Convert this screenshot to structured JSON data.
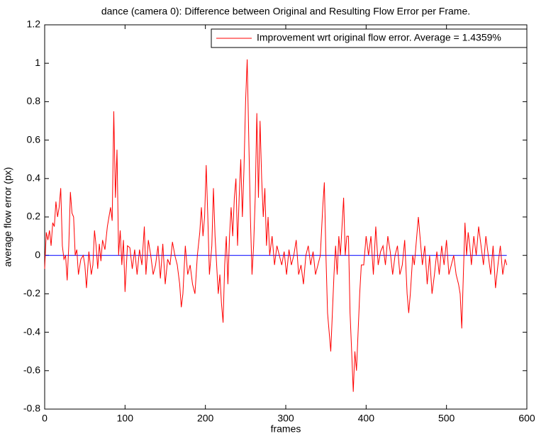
{
  "chart_data": {
    "type": "line",
    "title": "dance (camera 0): Difference between Original and Resulting Flow Error per Frame.",
    "xlabel": "frames",
    "ylabel": "average flow error (px)",
    "xlim": [
      0,
      600
    ],
    "xticks": [
      0,
      100,
      200,
      300,
      400,
      500,
      600
    ],
    "ylim": [
      -0.8,
      1.2
    ],
    "yticks": [
      -0.8,
      -0.6,
      -0.4,
      -0.2,
      0,
      0.2,
      0.4,
      0.6,
      0.8,
      1,
      1.2
    ],
    "grid": false,
    "legend": "upper right",
    "series": [
      {
        "name": "Improvement wrt original flow error. Average = 1.4359%",
        "color": "#ff0000",
        "x": [
          0,
          2,
          4,
          6,
          8,
          10,
          12,
          14,
          16,
          18,
          20,
          22,
          24,
          26,
          28,
          30,
          32,
          34,
          36,
          38,
          40,
          42,
          45,
          48,
          50,
          52,
          55,
          58,
          60,
          62,
          64,
          66,
          68,
          70,
          72,
          75,
          78,
          80,
          82,
          84,
          86,
          88,
          90,
          92,
          94,
          96,
          98,
          100,
          103,
          106,
          109,
          112,
          115,
          118,
          121,
          124,
          126,
          129,
          132,
          135,
          138,
          141,
          144,
          147,
          150,
          153,
          156,
          159,
          162,
          165,
          168,
          170,
          172,
          175,
          178,
          181,
          184,
          187,
          190,
          193,
          195,
          197,
          199,
          201,
          203,
          205,
          208,
          210,
          212,
          214,
          216,
          218,
          220,
          222,
          224,
          226,
          228,
          230,
          232,
          234,
          236,
          238,
          240,
          242,
          244,
          246,
          248,
          250,
          252,
          254,
          256,
          258,
          260,
          262,
          264,
          266,
          268,
          270,
          272,
          274,
          276,
          278,
          280,
          283,
          286,
          289,
          292,
          295,
          298,
          301,
          304,
          307,
          310,
          313,
          316,
          319,
          322,
          325,
          328,
          331,
          334,
          337,
          340,
          343,
          346,
          348,
          350,
          352,
          354,
          356,
          358,
          360,
          362,
          364,
          366,
          368,
          370,
          372,
          374,
          376,
          378,
          380,
          382,
          384,
          386,
          388,
          390,
          392,
          394,
          397,
          400,
          403,
          406,
          409,
          412,
          415,
          418,
          421,
          424,
          427,
          430,
          433,
          436,
          439,
          442,
          445,
          448,
          451,
          453,
          455,
          458,
          460,
          463,
          465,
          467,
          470,
          473,
          476,
          479,
          482,
          485,
          488,
          491,
          494,
          497,
          500,
          503,
          506,
          509,
          512,
          515,
          517,
          519,
          521,
          523,
          525,
          527,
          529,
          531,
          534,
          537,
          540,
          543,
          546,
          549,
          552,
          555,
          558,
          561,
          564,
          567,
          570,
          573,
          575
        ],
        "values": [
          -0.07,
          0.12,
          0.08,
          0.13,
          0.05,
          0.17,
          0.15,
          0.28,
          0.2,
          0.25,
          0.35,
          0.05,
          -0.02,
          0,
          -0.13,
          0.05,
          0.33,
          0.22,
          0.2,
          0,
          0.03,
          -0.1,
          -0.02,
          0,
          -0.05,
          -0.17,
          0.02,
          -0.1,
          -0.05,
          0.13,
          0.05,
          -0.07,
          0.06,
          -0.03,
          0.08,
          0.03,
          0.15,
          0.2,
          0.25,
          0.18,
          0.75,
          0.3,
          0.55,
          0,
          0.13,
          -0.05,
          0.08,
          -0.19,
          0.05,
          0.04,
          -0.07,
          0.03,
          -0.1,
          0.03,
          -0.05,
          0.15,
          -0.1,
          0.08,
          0,
          -0.1,
          -0.05,
          0.05,
          -0.12,
          0.06,
          -0.15,
          -0.02,
          -0.05,
          0.07,
          0,
          -0.05,
          -0.15,
          -0.27,
          -0.2,
          0.05,
          -0.1,
          -0.05,
          -0.15,
          -0.2,
          0,
          0.12,
          0.25,
          0.1,
          0.2,
          0.47,
          0.2,
          -0.1,
          0.05,
          0.35,
          0.1,
          -0.05,
          -0.2,
          -0.1,
          -0.25,
          -0.35,
          -0.05,
          0.1,
          -0.15,
          0.1,
          0.25,
          0.1,
          0.3,
          0.4,
          0.05,
          0.3,
          0.5,
          0.2,
          0.45,
          0.8,
          1.02,
          0.6,
          0.2,
          -0.1,
          0.05,
          0.3,
          0.74,
          0.3,
          0.7,
          0.4,
          0.2,
          0.35,
          0.05,
          0.2,
          0,
          0.1,
          -0.05,
          0.05,
          0,
          -0.05,
          0.02,
          -0.1,
          0.03,
          -0.05,
          0,
          0.08,
          -0.1,
          -0.05,
          -0.15,
          0,
          0.05,
          -0.05,
          0.02,
          -0.1,
          -0.05,
          0,
          0.25,
          0.38,
          0,
          -0.3,
          -0.4,
          -0.5,
          -0.3,
          -0.1,
          0.05,
          -0.1,
          0.1,
          0,
          0.15,
          0.3,
          0,
          0.1,
          0.1,
          -0.3,
          -0.5,
          -0.71,
          -0.5,
          -0.6,
          -0.4,
          -0.2,
          -0.05,
          -0.05,
          0.1,
          0,
          0.1,
          -0.1,
          0.15,
          -0.05,
          0.02,
          0.05,
          -0.05,
          0.1,
          0.02,
          -0.1,
          0,
          0.05,
          -0.1,
          -0.05,
          0.08,
          -0.2,
          -0.3,
          -0.2,
          0,
          -0.05,
          0.1,
          0.2,
          0.1,
          -0.05,
          0.05,
          -0.15,
          0,
          -0.2,
          -0.1,
          0.02,
          -0.1,
          0.05,
          -0.05,
          0.08,
          -0.1,
          -0.05,
          0,
          -0.1,
          -0.15,
          -0.2,
          -0.38,
          -0.1,
          0.17,
          0,
          0.12,
          0.05,
          -0.05,
          0.1,
          0,
          0.15,
          0.05,
          -0.05,
          0.1,
          0,
          -0.1,
          0.05,
          -0.17,
          -0.05,
          0.05,
          -0.1,
          -0.02,
          -0.05
        ]
      },
      {
        "color": "#0000ff",
        "x": [
          0,
          575
        ],
        "values": [
          0,
          0
        ]
      }
    ]
  }
}
